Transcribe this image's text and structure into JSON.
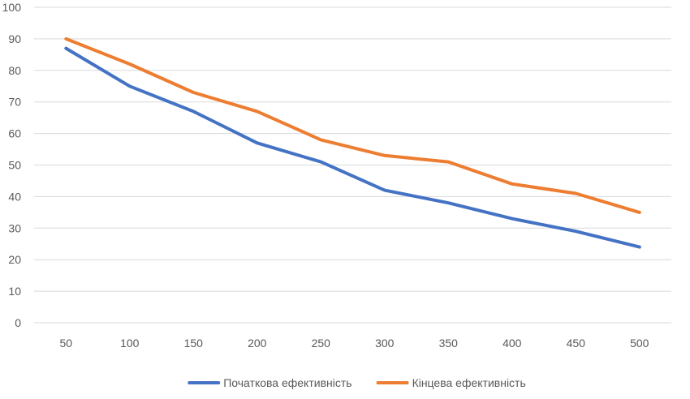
{
  "chart_data": {
    "type": "line",
    "title": "",
    "xlabel": "",
    "ylabel": "",
    "categories": [
      "50",
      "100",
      "150",
      "200",
      "250",
      "300",
      "350",
      "400",
      "450",
      "500"
    ],
    "series": [
      {
        "name": "Початкова ефективність",
        "color": "#4472c4",
        "values": [
          87,
          75,
          67,
          57,
          51,
          42,
          38,
          33,
          29,
          24
        ]
      },
      {
        "name": "Кінцева ефективність",
        "color": "#ed7d31",
        "values": [
          90,
          82,
          73,
          67,
          58,
          53,
          51,
          44,
          41,
          35
        ]
      }
    ],
    "ylim": [
      0,
      100
    ],
    "yticks": [
      0,
      10,
      20,
      30,
      40,
      50,
      60,
      70,
      80,
      90,
      100
    ],
    "grid": true,
    "legend": "bottom"
  }
}
